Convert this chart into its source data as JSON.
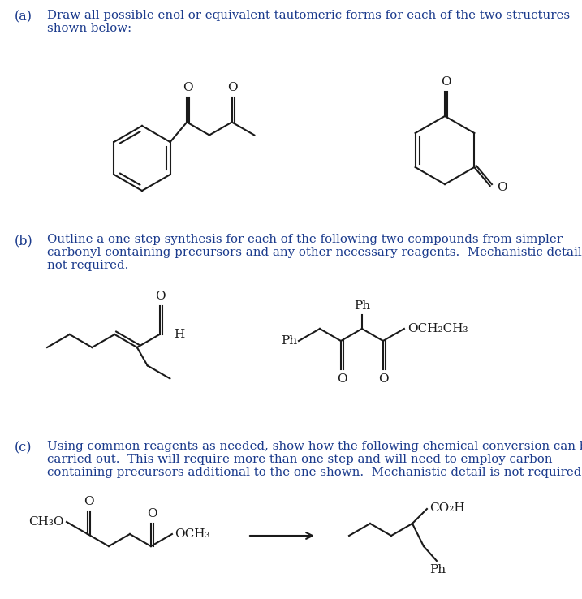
{
  "bg_color": "#ffffff",
  "text_color": "#1a3a8c",
  "struct_color": "#1a1a1a",
  "label_a": "(a)",
  "label_b": "(b)",
  "label_c": "(c)",
  "text_a": "Draw all possible enol or equivalent tautomeric forms for each of the two structures\nshown below:",
  "text_b": "Outline a one-step synthesis for each of the following two compounds from simpler\ncarbonyl-containing precursors and any other necessary reagents.  Mechanistic detail is\nnot required.",
  "text_c": "Using common reagents as needed, show how the following chemical conversion can be\ncarried out.  This will require more than one step and will need to employ carbon-\ncontaining precursors additional to the one shown.  Mechanistic detail is not required."
}
